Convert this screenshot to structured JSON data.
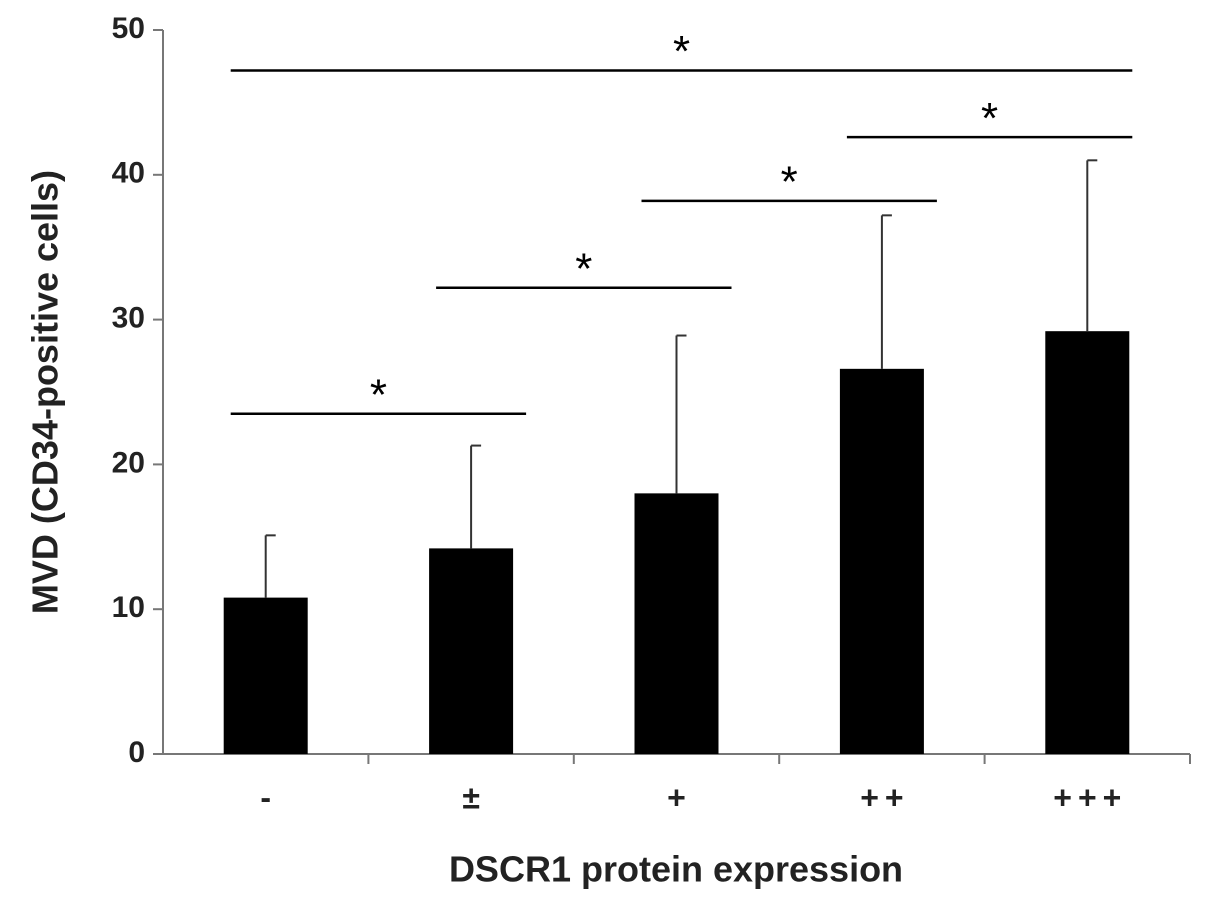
{
  "chart_data": {
    "type": "bar",
    "categories": [
      "-",
      "±",
      "+",
      "++",
      "+++"
    ],
    "values": [
      10.8,
      14.2,
      18.0,
      26.6,
      29.2
    ],
    "errors": [
      4.3,
      7.1,
      10.9,
      10.6,
      11.8
    ],
    "color": "#000000",
    "ylim": [
      0,
      50
    ],
    "yticks": [
      0,
      10,
      20,
      30,
      40,
      50
    ],
    "x_label": "DSCR1 protein expression",
    "y_label": "MVD (CD34-positive cells)",
    "significance": [
      {
        "label": "*",
        "from": 0,
        "to": 1,
        "y": 23.5
      },
      {
        "label": "*",
        "from": 1,
        "to": 2,
        "y": 32.2
      },
      {
        "label": "*",
        "from": 2,
        "to": 3,
        "y": 38.2
      },
      {
        "label": "*",
        "from": 3,
        "to": 4,
        "y": 42.6
      },
      {
        "label": "*",
        "from": 0,
        "to": 4,
        "y": 47.2
      }
    ]
  }
}
